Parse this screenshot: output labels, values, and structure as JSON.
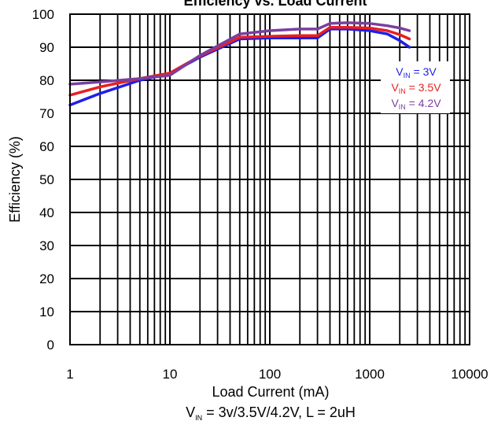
{
  "chart_data": {
    "type": "line",
    "title": "Efficiency vs. Load Current",
    "xlabel": "Load Current (mA)",
    "ylabel": "Efficiency (%)",
    "conditions": {
      "prefix": "V",
      "sub": "IN",
      "suffix": " = 3v/3.5V/4.2V, L = 2uH"
    },
    "x_scale": "log",
    "xlim": [
      1,
      10000
    ],
    "ylim": [
      0,
      100
    ],
    "x_ticks": [
      1,
      10,
      100,
      1000,
      10000
    ],
    "x_tick_labels": [
      "1",
      "10",
      "100",
      "1000",
      "10000"
    ],
    "y_ticks": [
      0,
      10,
      20,
      30,
      40,
      50,
      60,
      70,
      80,
      90,
      100
    ],
    "y_tick_labels": [
      "0",
      "10",
      "20",
      "30",
      "40",
      "50",
      "60",
      "70",
      "80",
      "90",
      "100"
    ],
    "grid": true,
    "legend_placement": "top-right",
    "series": [
      {
        "name": "V_IN = 3V",
        "legend": {
          "prefix": "V",
          "sub": "IN",
          "suffix": " = 3V"
        },
        "color": "#1f1fe8",
        "x": [
          1,
          2,
          5,
          10,
          20,
          50,
          100,
          200,
          300,
          400,
          600,
          1000,
          1500,
          2000,
          2500
        ],
        "y": [
          72.5,
          76,
          80,
          82,
          87,
          92.5,
          92.8,
          92.8,
          92.8,
          95.5,
          95.5,
          95,
          94,
          92,
          90
        ]
      },
      {
        "name": "V_IN = 3.5V",
        "legend": {
          "prefix": "V",
          "sub": "IN",
          "suffix": " = 3.5V"
        },
        "color": "#e81f1f",
        "x": [
          1,
          2,
          5,
          10,
          20,
          50,
          100,
          200,
          300,
          400,
          600,
          1000,
          1500,
          2000,
          2500
        ],
        "y": [
          75.5,
          78,
          80.5,
          82.2,
          87.3,
          93,
          93.3,
          93.5,
          93.5,
          96,
          96,
          95.8,
          95,
          93.8,
          92.5
        ]
      },
      {
        "name": "V_IN = 4.2V",
        "legend": {
          "prefix": "V",
          "sub": "IN",
          "suffix": " = 4.2V"
        },
        "color": "#7a3fa0",
        "x": [
          1,
          2,
          5,
          10,
          20,
          50,
          100,
          200,
          300,
          400,
          600,
          1000,
          1500,
          2000,
          2500
        ],
        "y": [
          78.8,
          79.5,
          80.5,
          81.5,
          87.5,
          94,
          95,
          95.5,
          95.5,
          97.2,
          97.4,
          97.2,
          96.5,
          95.8,
          95
        ]
      }
    ]
  }
}
